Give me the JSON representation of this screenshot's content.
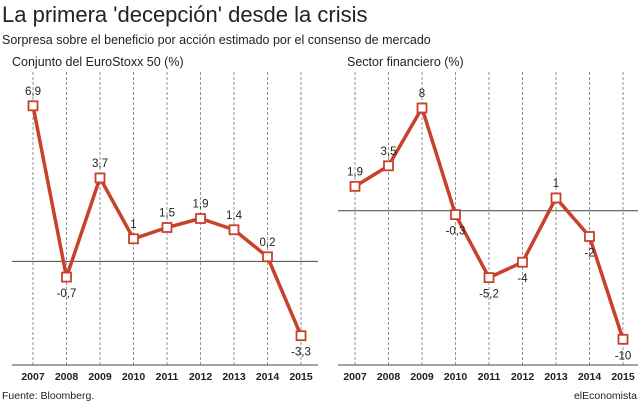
{
  "title": "La primera 'decepción' desde la crisis",
  "subtitle": "Sorpresa sobre el beneficio por acción estimado por el consenso de mercado",
  "source": "Fuente: Bloomberg.",
  "brand": "elEconomista",
  "colors": {
    "line": "#c8412a",
    "marker_fill": "#ffffff",
    "axis": "#444444",
    "grid": "#777777"
  },
  "chart_data": [
    {
      "type": "line",
      "title": "Conjunto del EuroStoxx 50 (%)",
      "x": [
        "2007",
        "2008",
        "2009",
        "2010",
        "2011",
        "2012",
        "2013",
        "2014",
        "2015"
      ],
      "labels": [
        "6,9",
        "-0,7",
        "3,7",
        "1",
        "1,5",
        "1,9",
        "1,4",
        "0,2",
        "-3,3"
      ],
      "values": [
        6.9,
        -0.7,
        3.7,
        1.0,
        1.5,
        1.9,
        1.4,
        0.2,
        -3.3
      ],
      "ylim": [
        -4.6,
        8.4
      ],
      "grid": "vertical dashed",
      "legend": "none"
    },
    {
      "type": "line",
      "title": "Sector financiero (%)",
      "x": [
        "2007",
        "2008",
        "2009",
        "2010",
        "2011",
        "2012",
        "2013",
        "2014",
        "2015"
      ],
      "labels": [
        "1,9",
        "3,5",
        "8",
        "-0,3",
        "-5,2",
        "-4",
        "1",
        "-2",
        "-10"
      ],
      "values": [
        1.9,
        3.5,
        8.0,
        -0.3,
        -5.2,
        -4.0,
        1.0,
        -2.0,
        -10.0
      ],
      "ylim": [
        -12.0,
        10.8
      ],
      "grid": "vertical dashed",
      "legend": "none"
    }
  ]
}
